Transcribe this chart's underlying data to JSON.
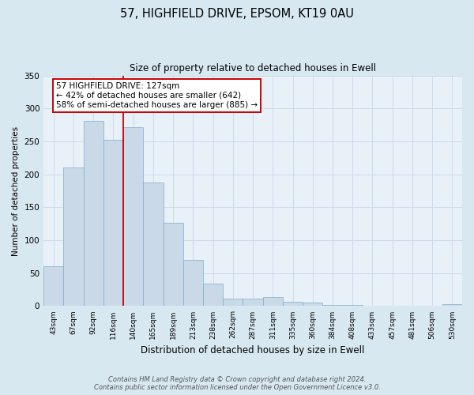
{
  "title": "57, HIGHFIELD DRIVE, EPSOM, KT19 0AU",
  "subtitle": "Size of property relative to detached houses in Ewell",
  "xlabel": "Distribution of detached houses by size in Ewell",
  "ylabel": "Number of detached properties",
  "bin_labels": [
    "43sqm",
    "67sqm",
    "92sqm",
    "116sqm",
    "140sqm",
    "165sqm",
    "189sqm",
    "213sqm",
    "238sqm",
    "262sqm",
    "287sqm",
    "311sqm",
    "335sqm",
    "360sqm",
    "384sqm",
    "408sqm",
    "433sqm",
    "457sqm",
    "481sqm",
    "506sqm",
    "530sqm"
  ],
  "bar_heights": [
    60,
    210,
    281,
    252,
    271,
    188,
    127,
    70,
    34,
    11,
    11,
    14,
    7,
    5,
    2,
    2,
    1,
    0,
    1,
    0,
    3
  ],
  "bar_color": "#c9d9e8",
  "bar_edge_color": "#7faec8",
  "vline_color": "#cc0000",
  "annotation_text": "57 HIGHFIELD DRIVE: 127sqm\n← 42% of detached houses are smaller (642)\n58% of semi-detached houses are larger (885) →",
  "annotation_box_color": "#ffffff",
  "annotation_box_edge": "#cc0000",
  "ylim": [
    0,
    350
  ],
  "yticks": [
    0,
    50,
    100,
    150,
    200,
    250,
    300,
    350
  ],
  "grid_color": "#c8d8e8",
  "bg_color": "#d8e8f0",
  "plot_bg_color": "#e8f0f8",
  "footer_line1": "Contains HM Land Registry data © Crown copyright and database right 2024.",
  "footer_line2": "Contains public sector information licensed under the Open Government Licence v3.0."
}
